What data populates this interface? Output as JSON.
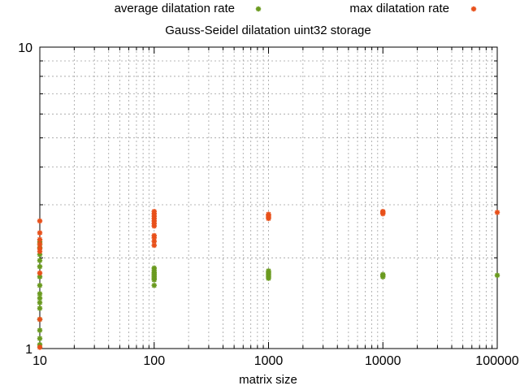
{
  "chart_data": {
    "type": "scatter",
    "title": "Gauss-Seidel dilatation uint32 storage",
    "xlabel": "matrix size",
    "ylabel": "",
    "xscale": "log",
    "yscale": "log",
    "xlim": [
      10,
      100000
    ],
    "ylim": [
      1,
      10
    ],
    "grid": true,
    "legend_position": "top",
    "x_tick_labels": [
      "10",
      "100",
      "1000",
      "10000",
      "100000"
    ],
    "x_tick_values": [
      10,
      100,
      1000,
      10000,
      100000
    ],
    "y_tick_labels": [
      "1",
      "10"
    ],
    "y_tick_values": [
      1,
      10
    ],
    "series": [
      {
        "name": "average dilatation rate",
        "color": "#6a9a1f",
        "marker": "star",
        "points": [
          [
            10,
            1.03
          ],
          [
            10,
            1.08
          ],
          [
            10,
            1.15
          ],
          [
            10,
            1.25
          ],
          [
            10,
            1.36
          ],
          [
            10,
            1.42
          ],
          [
            10,
            1.47
          ],
          [
            10,
            1.52
          ],
          [
            10,
            1.62
          ],
          [
            10,
            1.73
          ],
          [
            10,
            1.87
          ],
          [
            10,
            1.96
          ],
          [
            10,
            2.05
          ],
          [
            10,
            2.16
          ],
          [
            10,
            2.22
          ],
          [
            10,
            2.26
          ],
          [
            100,
            1.62
          ],
          [
            100,
            1.69
          ],
          [
            100,
            1.71
          ],
          [
            100,
            1.73
          ],
          [
            100,
            1.75
          ],
          [
            100,
            1.77
          ],
          [
            100,
            1.79
          ],
          [
            100,
            1.82
          ],
          [
            100,
            1.85
          ],
          [
            1000,
            1.71
          ],
          [
            1000,
            1.73
          ],
          [
            1000,
            1.75
          ],
          [
            1000,
            1.77
          ],
          [
            1000,
            1.79
          ],
          [
            1000,
            1.81
          ],
          [
            10000,
            1.73
          ],
          [
            10000,
            1.75
          ],
          [
            10000,
            1.76
          ],
          [
            100000,
            1.75
          ]
        ]
      },
      {
        "name": "max dilatation rate",
        "color": "#e8501a",
        "marker": "star",
        "points": [
          [
            10,
            1.01
          ],
          [
            10,
            1.25
          ],
          [
            10,
            1.78
          ],
          [
            10,
            2.1
          ],
          [
            10,
            2.15
          ],
          [
            10,
            2.22
          ],
          [
            10,
            2.3
          ],
          [
            10,
            2.42
          ],
          [
            10,
            2.65
          ],
          [
            100,
            2.2
          ],
          [
            100,
            2.27
          ],
          [
            100,
            2.33
          ],
          [
            100,
            2.37
          ],
          [
            100,
            2.55
          ],
          [
            100,
            2.6
          ],
          [
            100,
            2.65
          ],
          [
            100,
            2.7
          ],
          [
            100,
            2.75
          ],
          [
            100,
            2.8
          ],
          [
            100,
            2.85
          ],
          [
            1000,
            2.7
          ],
          [
            1000,
            2.73
          ],
          [
            1000,
            2.76
          ],
          [
            1000,
            2.79
          ],
          [
            10000,
            2.8
          ],
          [
            10000,
            2.83
          ],
          [
            10000,
            2.85
          ],
          [
            100000,
            2.83
          ]
        ]
      }
    ]
  }
}
